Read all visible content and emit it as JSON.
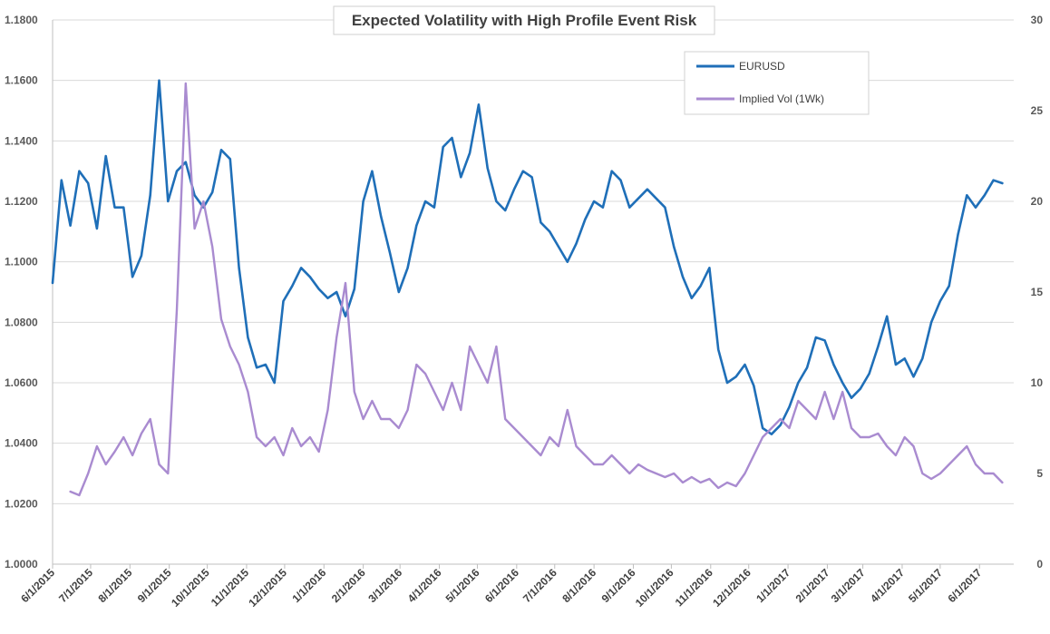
{
  "chart_data": {
    "type": "line",
    "title": "Expected Volatility  with High Profile Event Risk",
    "xlabel": "",
    "ylabel": "",
    "y2label": "",
    "grid": true,
    "legend_position": "top-right",
    "x_ticks": [
      "6/1/2015",
      "7/1/2015",
      "8/1/2015",
      "9/1/2015",
      "10/1/2015",
      "11/1/2015",
      "12/1/2015",
      "1/1/2016",
      "2/1/2016",
      "3/1/2016",
      "4/1/2016",
      "5/1/2016",
      "6/1/2016",
      "7/1/2016",
      "8/1/2016",
      "9/1/2016",
      "10/1/2016",
      "11/1/2016",
      "12/1/2016",
      "1/1/2017",
      "2/1/2017",
      "3/1/2017",
      "4/1/2017",
      "5/1/2017",
      "6/1/2017"
    ],
    "y_ticks": [
      "1.0000",
      "1.0200",
      "1.0400",
      "1.0600",
      "1.0800",
      "1.1000",
      "1.1200",
      "1.1400",
      "1.1600",
      "1.1800"
    ],
    "ylim": [
      1.0,
      1.18
    ],
    "y2_ticks": [
      "0",
      "5",
      "10",
      "15",
      "20",
      "25",
      "30"
    ],
    "y2lim": [
      0,
      30
    ],
    "colors": {
      "eurusd": "#1f6fb8",
      "vol": "#a98bd0",
      "grid": "#d9d9d9"
    },
    "series": [
      {
        "name": "EURUSD",
        "axis": "left",
        "x": [
          "6/1/2015",
          "6/8/2015",
          "6/15/2015",
          "6/22/2015",
          "6/29/2015",
          "7/6/2015",
          "7/13/2015",
          "7/20/2015",
          "7/27/2015",
          "8/3/2015",
          "8/10/2015",
          "8/17/2015",
          "8/24/2015",
          "8/31/2015",
          "9/7/2015",
          "9/14/2015",
          "9/21/2015",
          "9/28/2015",
          "10/5/2015",
          "10/12/2015",
          "10/19/2015",
          "10/26/2015",
          "11/2/2015",
          "11/9/2015",
          "11/16/2015",
          "11/23/2015",
          "11/30/2015",
          "12/7/2015",
          "12/14/2015",
          "12/21/2015",
          "12/28/2015",
          "1/4/2016",
          "1/11/2016",
          "1/18/2016",
          "1/25/2016",
          "2/1/2016",
          "2/8/2016",
          "2/15/2016",
          "2/22/2016",
          "2/29/2016",
          "3/7/2016",
          "3/14/2016",
          "3/21/2016",
          "3/28/2016",
          "4/4/2016",
          "4/11/2016",
          "4/18/2016",
          "4/25/2016",
          "5/2/2016",
          "5/9/2016",
          "5/16/2016",
          "5/23/2016",
          "5/30/2016",
          "6/6/2016",
          "6/13/2016",
          "6/20/2016",
          "6/27/2016",
          "7/4/2016",
          "7/11/2016",
          "7/18/2016",
          "7/25/2016",
          "8/1/2016",
          "8/8/2016",
          "8/15/2016",
          "8/22/2016",
          "8/29/2016",
          "9/5/2016",
          "9/12/2016",
          "9/19/2016",
          "9/26/2016",
          "10/3/2016",
          "10/10/2016",
          "10/17/2016",
          "10/24/2016",
          "10/31/2016",
          "11/7/2016",
          "11/14/2016",
          "11/21/2016",
          "11/28/2016",
          "12/5/2016",
          "12/12/2016",
          "12/19/2016",
          "12/26/2016",
          "1/2/2017",
          "1/9/2017",
          "1/16/2017",
          "1/23/2017",
          "1/30/2017",
          "2/6/2017",
          "2/13/2017",
          "2/20/2017",
          "2/27/2017",
          "3/6/2017",
          "3/13/2017",
          "3/20/2017",
          "3/27/2017",
          "4/3/2017",
          "4/10/2017",
          "4/17/2017",
          "4/24/2017",
          "5/1/2017",
          "5/8/2017",
          "5/15/2017",
          "5/22/2017",
          "5/29/2017",
          "6/5/2017",
          "6/12/2017",
          "6/19/2017"
        ],
        "values": [
          1.093,
          1.127,
          1.112,
          1.13,
          1.126,
          1.111,
          1.135,
          1.118,
          1.118,
          1.095,
          1.102,
          1.122,
          1.16,
          1.12,
          1.13,
          1.133,
          1.122,
          1.118,
          1.123,
          1.137,
          1.134,
          1.098,
          1.075,
          1.065,
          1.066,
          1.06,
          1.087,
          1.092,
          1.098,
          1.095,
          1.091,
          1.088,
          1.09,
          1.082,
          1.091,
          1.12,
          1.13,
          1.115,
          1.103,
          1.09,
          1.098,
          1.112,
          1.12,
          1.118,
          1.138,
          1.141,
          1.128,
          1.136,
          1.152,
          1.131,
          1.12,
          1.117,
          1.124,
          1.13,
          1.128,
          1.113,
          1.11,
          1.105,
          1.1,
          1.106,
          1.114,
          1.12,
          1.118,
          1.13,
          1.127,
          1.118,
          1.121,
          1.124,
          1.121,
          1.118,
          1.105,
          1.095,
          1.088,
          1.092,
          1.098,
          1.071,
          1.06,
          1.062,
          1.066,
          1.059,
          1.045,
          1.043,
          1.046,
          1.052,
          1.06,
          1.065,
          1.075,
          1.074,
          1.066,
          1.06,
          1.055,
          1.058,
          1.063,
          1.072,
          1.082,
          1.066,
          1.068,
          1.062,
          1.068,
          1.08,
          1.087,
          1.092,
          1.109,
          1.122,
          1.118,
          1.122,
          1.127,
          1.126
        ]
      },
      {
        "name": "Implied Vol (1Wk)",
        "axis": "right",
        "x": [
          "6/15/2015",
          "6/22/2015",
          "6/29/2015",
          "7/6/2015",
          "7/13/2015",
          "7/20/2015",
          "7/27/2015",
          "8/3/2015",
          "8/10/2015",
          "8/17/2015",
          "8/24/2015",
          "8/31/2015",
          "9/7/2015",
          "9/14/2015",
          "9/21/2015",
          "9/28/2015",
          "10/5/2015",
          "10/12/2015",
          "10/19/2015",
          "10/26/2015",
          "11/2/2015",
          "11/9/2015",
          "11/16/2015",
          "11/23/2015",
          "11/30/2015",
          "12/7/2015",
          "12/14/2015",
          "12/21/2015",
          "12/28/2015",
          "1/4/2016",
          "1/11/2016",
          "1/18/2016",
          "1/25/2016",
          "2/1/2016",
          "2/8/2016",
          "2/15/2016",
          "2/22/2016",
          "2/29/2016",
          "3/7/2016",
          "3/14/2016",
          "3/21/2016",
          "3/28/2016",
          "4/4/2016",
          "4/11/2016",
          "4/18/2016",
          "4/25/2016",
          "5/2/2016",
          "5/9/2016",
          "5/16/2016",
          "5/23/2016",
          "5/30/2016",
          "6/6/2016",
          "6/13/2016",
          "6/20/2016",
          "6/27/2016",
          "7/4/2016",
          "7/11/2016",
          "7/18/2016",
          "7/25/2016",
          "8/1/2016",
          "8/8/2016",
          "8/15/2016",
          "8/22/2016",
          "8/29/2016",
          "9/5/2016",
          "9/12/2016",
          "9/19/2016",
          "9/26/2016",
          "10/3/2016",
          "10/10/2016",
          "10/17/2016",
          "10/24/2016",
          "10/31/2016",
          "11/7/2016",
          "11/14/2016",
          "11/21/2016",
          "11/28/2016",
          "12/5/2016",
          "12/12/2016",
          "12/19/2016",
          "12/26/2016",
          "1/2/2017",
          "1/9/2017",
          "1/16/2017",
          "1/23/2017",
          "1/30/2017",
          "2/6/2017",
          "2/13/2017",
          "2/20/2017",
          "2/27/2017",
          "3/6/2017",
          "3/13/2017",
          "3/20/2017",
          "3/27/2017",
          "4/3/2017",
          "4/10/2017",
          "4/17/2017",
          "4/24/2017",
          "5/1/2017",
          "5/8/2017",
          "5/15/2017",
          "5/22/2017",
          "5/29/2017",
          "6/5/2017",
          "6/12/2017",
          "6/19/2017"
        ],
        "values": [
          4.0,
          3.8,
          5.0,
          6.5,
          5.5,
          6.2,
          7.0,
          6.0,
          7.2,
          8.0,
          5.5,
          5.0,
          14.0,
          26.5,
          18.5,
          20.0,
          17.5,
          13.5,
          12.0,
          11.0,
          9.5,
          7.0,
          6.5,
          7.0,
          6.0,
          7.5,
          6.5,
          7.0,
          6.2,
          8.5,
          12.5,
          15.5,
          9.5,
          8.0,
          9.0,
          8.0,
          8.0,
          7.5,
          8.5,
          11.0,
          10.5,
          9.5,
          8.5,
          10.0,
          8.5,
          12.0,
          11.0,
          10.0,
          12.0,
          8.0,
          7.5,
          7.0,
          6.5,
          6.0,
          7.0,
          6.5,
          8.5,
          6.5,
          6.0,
          5.5,
          5.5,
          6.0,
          5.5,
          5.0,
          5.5,
          5.2,
          5.0,
          4.8,
          5.0,
          4.5,
          4.8,
          4.5,
          4.7,
          4.2,
          4.5,
          4.3,
          5.0,
          6.0,
          7.0,
          7.5,
          8.0,
          7.5,
          9.0,
          8.5,
          8.0,
          9.5,
          8.0,
          9.5,
          7.5,
          7.0,
          7.0,
          7.2,
          6.5,
          6.0,
          7.0,
          6.5,
          5.0,
          4.7,
          5.0,
          5.5,
          6.0,
          6.5,
          5.5,
          5.0,
          5.0,
          4.5
        ]
      }
    ]
  }
}
